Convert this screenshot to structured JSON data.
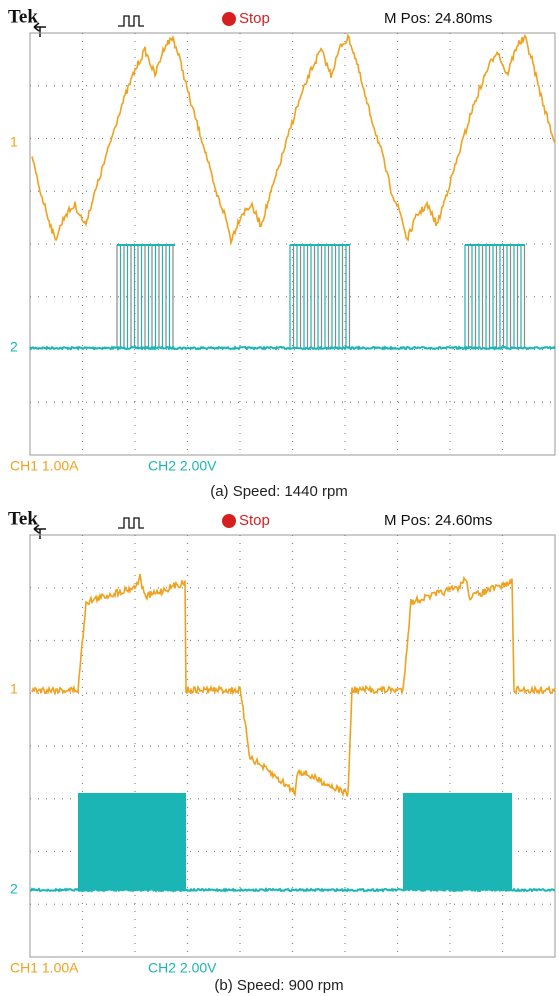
{
  "panels": [
    {
      "brand": "Tek",
      "status": "Stop",
      "position": "M Pos: 24.80ms",
      "ch1_marker": "1",
      "ch2_marker": "2",
      "ch1_scale": "CH1  1.00A",
      "ch2_scale": "CH2  2.00V",
      "caption": "(a) Speed: 1440 rpm"
    },
    {
      "brand": "Tek",
      "status": "Stop",
      "position": "M Pos: 24.60ms",
      "ch1_marker": "1",
      "ch2_marker": "2",
      "ch1_scale": "CH1  1.00A",
      "ch2_scale": "CH2  2.00V",
      "caption": "(b) Speed: 900 rpm"
    }
  ]
}
